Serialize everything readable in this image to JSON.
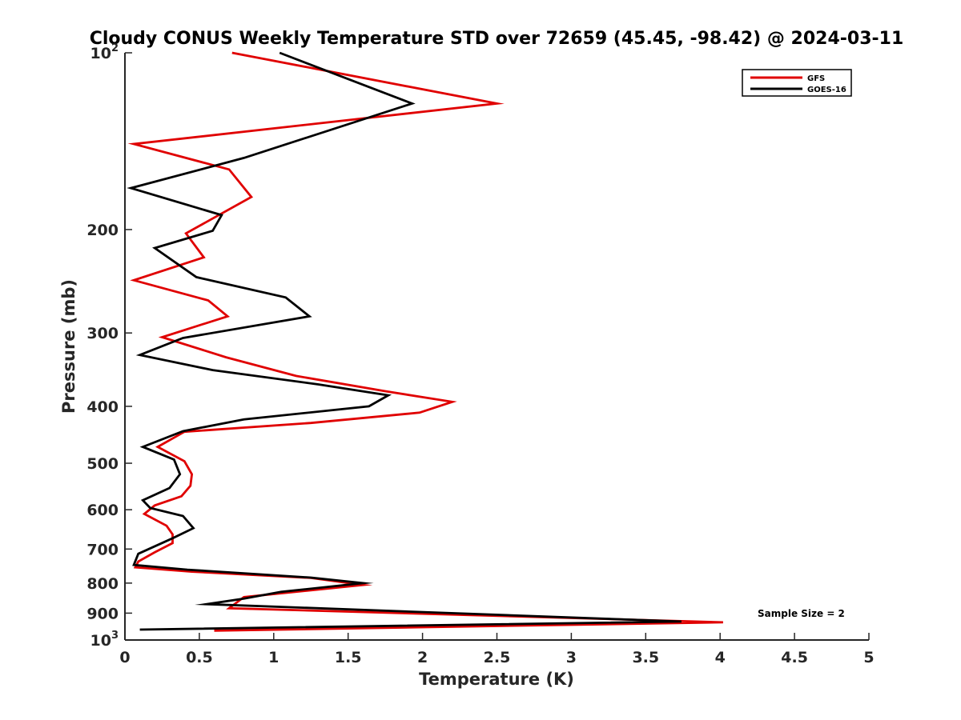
{
  "chart_data": {
    "type": "line",
    "title": "Cloudy CONUS Weekly Temperature STD over 72659 (45.45, -98.42) @ 2024-03-11",
    "xlabel": "Temperature (K)",
    "ylabel": "Pressure (mb)",
    "xlim": [
      0,
      5
    ],
    "ylim": [
      100,
      1000
    ],
    "y_scale": "log",
    "y_reversed": true,
    "x_ticks": [
      "0",
      "0.5",
      "1",
      "1.5",
      "2",
      "2.5",
      "3",
      "3.5",
      "4",
      "4.5",
      "5"
    ],
    "y_ticks": [
      {
        "value": 100,
        "base": "10",
        "exp": "2"
      },
      {
        "value": 200,
        "label": "200"
      },
      {
        "value": 300,
        "label": "300"
      },
      {
        "value": 400,
        "label": "400"
      },
      {
        "value": 500,
        "label": "500"
      },
      {
        "value": 600,
        "label": "600"
      },
      {
        "value": 700,
        "label": "700"
      },
      {
        "value": 800,
        "label": "800"
      },
      {
        "value": 900,
        "label": "900"
      },
      {
        "value": 1000,
        "base": "10",
        "exp": "3"
      }
    ],
    "grid": false,
    "legend_position": "top-right",
    "annotation": "Sample Size = 2",
    "series": [
      {
        "name": "GFS",
        "color": "#e00000",
        "points": [
          [
            0.72,
            100
          ],
          [
            2.5,
            122
          ],
          [
            0.06,
            143
          ],
          [
            0.7,
            158
          ],
          [
            0.85,
            176
          ],
          [
            0.41,
            203
          ],
          [
            0.53,
            223
          ],
          [
            0.06,
            244
          ],
          [
            0.56,
            264
          ],
          [
            0.69,
            281
          ],
          [
            0.25,
            305
          ],
          [
            0.68,
            330
          ],
          [
            1.15,
            355
          ],
          [
            1.75,
            377
          ],
          [
            2.2,
            393
          ],
          [
            1.98,
            410
          ],
          [
            1.25,
            427
          ],
          [
            0.4,
            442
          ],
          [
            0.22,
            469
          ],
          [
            0.4,
            496
          ],
          [
            0.45,
            522
          ],
          [
            0.44,
            546
          ],
          [
            0.38,
            569
          ],
          [
            0.2,
            590
          ],
          [
            0.13,
            610
          ],
          [
            0.28,
            639
          ],
          [
            0.32,
            661
          ],
          [
            0.32,
            684
          ],
          [
            0.2,
            709
          ],
          [
            0.09,
            735
          ],
          [
            0.07,
            752
          ],
          [
            0.45,
            765
          ],
          [
            1.25,
            784
          ],
          [
            1.6,
            806
          ],
          [
            0.8,
            845
          ],
          [
            0.7,
            883
          ],
          [
            4.02,
            933
          ],
          [
            0.6,
            964
          ]
        ]
      },
      {
        "name": "GOES-16",
        "color": "#000000",
        "points": [
          [
            1.04,
            100
          ],
          [
            1.93,
            122
          ],
          [
            0.8,
            151
          ],
          [
            0.04,
            170
          ],
          [
            0.65,
            189
          ],
          [
            0.59,
            201
          ],
          [
            0.2,
            215
          ],
          [
            0.48,
            241
          ],
          [
            1.08,
            261
          ],
          [
            1.24,
            281
          ],
          [
            0.39,
            306
          ],
          [
            0.1,
            327
          ],
          [
            0.59,
            347
          ],
          [
            1.3,
            367
          ],
          [
            1.77,
            383
          ],
          [
            1.64,
            400
          ],
          [
            0.8,
            421
          ],
          [
            0.39,
            441
          ],
          [
            0.12,
            469
          ],
          [
            0.33,
            493
          ],
          [
            0.37,
            522
          ],
          [
            0.3,
            551
          ],
          [
            0.12,
            578
          ],
          [
            0.17,
            596
          ],
          [
            0.39,
            615
          ],
          [
            0.46,
            645
          ],
          [
            0.32,
            671
          ],
          [
            0.09,
            713
          ],
          [
            0.06,
            745
          ],
          [
            0.42,
            759
          ],
          [
            1.25,
            783
          ],
          [
            1.6,
            800
          ],
          [
            1.05,
            828
          ],
          [
            0.8,
            850
          ],
          [
            0.55,
            869
          ],
          [
            3.74,
            930
          ],
          [
            0.1,
            960
          ]
        ]
      }
    ]
  }
}
